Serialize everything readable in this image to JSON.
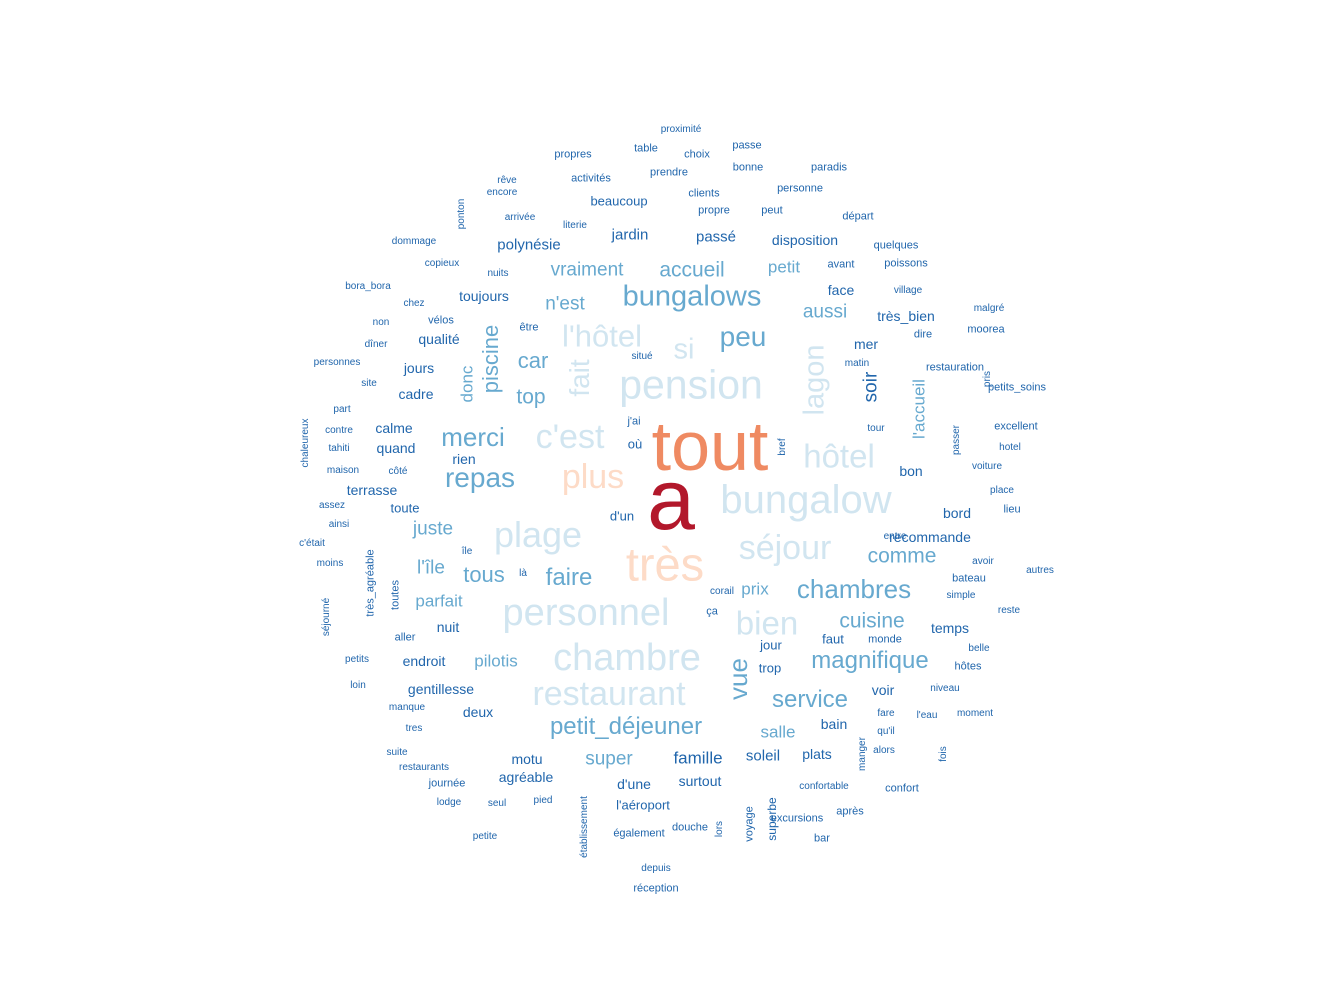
{
  "palette": {
    "dark_red": "#B2182B",
    "orange": "#EF8A62",
    "peach": "#FDDBC7",
    "pale_blue": "#D1E5F0",
    "light_blue": "#67A9CF",
    "dark_blue": "#2166AC"
  },
  "words": [
    {
      "text": "a",
      "level": 100,
      "color": "dark_red"
    },
    {
      "text": "tout",
      "level": 65,
      "color": "orange"
    },
    {
      "text": "plus",
      "level": 40,
      "color": "peach"
    },
    {
      "text": "très",
      "level": 55,
      "color": "peach"
    },
    {
      "text": "pension",
      "level": 48,
      "color": "pale_blue"
    },
    {
      "text": "bungalow",
      "level": 46,
      "color": "pale_blue"
    },
    {
      "text": "personnel",
      "level": 44,
      "color": "pale_blue"
    },
    {
      "text": "chambre",
      "level": 44,
      "color": "pale_blue"
    },
    {
      "text": "plage",
      "level": 42,
      "color": "pale_blue"
    },
    {
      "text": "restaurant",
      "level": 40,
      "color": "pale_blue"
    },
    {
      "text": "séjour",
      "level": 40,
      "color": "pale_blue"
    },
    {
      "text": "c'est",
      "level": 40,
      "color": "pale_blue"
    },
    {
      "text": "hôtel",
      "level": 38,
      "color": "pale_blue"
    },
    {
      "text": "bien",
      "level": 38,
      "color": "pale_blue"
    },
    {
      "text": "l'hôtel",
      "level": 36,
      "color": "pale_blue"
    },
    {
      "text": "lagon",
      "level": 34,
      "color": "pale_blue"
    },
    {
      "text": "si",
      "level": 34,
      "color": "pale_blue"
    },
    {
      "text": "fait",
      "level": 32,
      "color": "pale_blue"
    },
    {
      "text": "bungalows",
      "level": 34,
      "color": "light_blue"
    },
    {
      "text": "peu",
      "level": 32,
      "color": "light_blue"
    },
    {
      "text": "repas",
      "level": 32,
      "color": "light_blue"
    },
    {
      "text": "merci",
      "level": 30,
      "color": "light_blue"
    },
    {
      "text": "chambres",
      "level": 30,
      "color": "light_blue"
    },
    {
      "text": "vue",
      "level": 30,
      "color": "light_blue"
    },
    {
      "text": "petit_déjeuner",
      "level": 28,
      "color": "light_blue"
    },
    {
      "text": "magnifique",
      "level": 28,
      "color": "light_blue"
    },
    {
      "text": "faire",
      "level": 28,
      "color": "light_blue"
    },
    {
      "text": "service",
      "level": 28,
      "color": "light_blue"
    },
    {
      "text": "piscine",
      "level": 26,
      "color": "light_blue"
    },
    {
      "text": "tous",
      "level": 26,
      "color": "light_blue"
    },
    {
      "text": "car",
      "level": 26,
      "color": "light_blue"
    },
    {
      "text": "comme",
      "level": 24,
      "color": "light_blue"
    },
    {
      "text": "cuisine",
      "level": 24,
      "color": "light_blue"
    },
    {
      "text": "accueil",
      "level": 24,
      "color": "light_blue"
    },
    {
      "text": "vraiment",
      "level": 22,
      "color": "light_blue"
    },
    {
      "text": "n'est",
      "level": 22,
      "color": "light_blue"
    },
    {
      "text": "top",
      "level": 24,
      "color": "light_blue"
    },
    {
      "text": "aussi",
      "level": 22,
      "color": "light_blue"
    },
    {
      "text": "juste",
      "level": 22,
      "color": "light_blue"
    },
    {
      "text": "l'île",
      "level": 22,
      "color": "light_blue"
    },
    {
      "text": "parfait",
      "level": 20,
      "color": "light_blue"
    },
    {
      "text": "pilotis",
      "level": 20,
      "color": "light_blue"
    },
    {
      "text": "super",
      "level": 22,
      "color": "light_blue"
    },
    {
      "text": "salle",
      "level": 20,
      "color": "light_blue"
    },
    {
      "text": "petit",
      "level": 20,
      "color": "light_blue"
    },
    {
      "text": "prix",
      "level": 20,
      "color": "light_blue"
    },
    {
      "text": "donc",
      "level": 20,
      "color": "light_blue"
    },
    {
      "text": "l'accueil",
      "level": 20,
      "color": "light_blue"
    },
    {
      "text": "soir",
      "level": 22,
      "color": "dark_blue"
    },
    {
      "text": "famille",
      "level": 20,
      "color": "dark_blue"
    },
    {
      "text": "polynésie",
      "level": 18,
      "color": "dark_blue"
    },
    {
      "text": "jardin",
      "level": 18,
      "color": "dark_blue"
    },
    {
      "text": "passé",
      "level": 18,
      "color": "dark_blue"
    },
    {
      "text": "disposition",
      "level": 16,
      "color": "dark_blue"
    },
    {
      "text": "toujours",
      "level": 16,
      "color": "dark_blue"
    },
    {
      "text": "soleil",
      "level": 18,
      "color": "dark_blue"
    },
    {
      "text": "gentillesse",
      "level": 16,
      "color": "dark_blue"
    },
    {
      "text": "deux",
      "level": 16,
      "color": "dark_blue"
    },
    {
      "text": "motu",
      "level": 16,
      "color": "dark_blue"
    },
    {
      "text": "surtout",
      "level": 16,
      "color": "dark_blue"
    },
    {
      "text": "d'une",
      "level": 16,
      "color": "dark_blue"
    },
    {
      "text": "agréable",
      "level": 16,
      "color": "dark_blue"
    },
    {
      "text": "nuit",
      "level": 16,
      "color": "dark_blue"
    },
    {
      "text": "endroit",
      "level": 16,
      "color": "dark_blue"
    },
    {
      "text": "quand",
      "level": 16,
      "color": "dark_blue"
    },
    {
      "text": "rien",
      "level": 16,
      "color": "dark_blue"
    },
    {
      "text": "terrasse",
      "level": 16,
      "color": "dark_blue"
    },
    {
      "text": "cadre",
      "level": 16,
      "color": "dark_blue"
    },
    {
      "text": "jours",
      "level": 16,
      "color": "dark_blue"
    },
    {
      "text": "qualité",
      "level": 16,
      "color": "dark_blue"
    },
    {
      "text": "calme",
      "level": 16,
      "color": "dark_blue"
    },
    {
      "text": "bon",
      "level": 16,
      "color": "dark_blue"
    },
    {
      "text": "recommande",
      "level": 16,
      "color": "dark_blue"
    },
    {
      "text": "bord",
      "level": 16,
      "color": "dark_blue"
    },
    {
      "text": "temps",
      "level": 16,
      "color": "dark_blue"
    },
    {
      "text": "mer",
      "level": 16,
      "color": "dark_blue"
    },
    {
      "text": "face",
      "level": 16,
      "color": "dark_blue"
    },
    {
      "text": "très_bien",
      "level": 16,
      "color": "dark_blue"
    },
    {
      "text": "voir",
      "level": 16,
      "color": "dark_blue"
    },
    {
      "text": "plats",
      "level": 16,
      "color": "dark_blue"
    },
    {
      "text": "bain",
      "level": 16,
      "color": "dark_blue"
    },
    {
      "text": "faut",
      "level": 15,
      "color": "dark_blue"
    },
    {
      "text": "jour",
      "level": 15,
      "color": "dark_blue"
    },
    {
      "text": "trop",
      "level": 15,
      "color": "dark_blue"
    },
    {
      "text": "beaucoup",
      "level": 15,
      "color": "dark_blue"
    },
    {
      "text": "d'un",
      "level": 15,
      "color": "dark_blue"
    },
    {
      "text": "l'aéroport",
      "level": 15,
      "color": "dark_blue"
    },
    {
      "text": "toute",
      "level": 15,
      "color": "dark_blue"
    },
    {
      "text": "où",
      "level": 15,
      "color": "dark_blue"
    },
    {
      "text": "avant",
      "level": 13,
      "color": "dark_blue"
    },
    {
      "text": "clients",
      "level": 13,
      "color": "dark_blue"
    },
    {
      "text": "activités",
      "level": 13,
      "color": "dark_blue"
    },
    {
      "text": "propres",
      "level": 13,
      "color": "dark_blue"
    },
    {
      "text": "prendre",
      "level": 13,
      "color": "dark_blue"
    },
    {
      "text": "propre",
      "level": 13,
      "color": "dark_blue"
    },
    {
      "text": "peut",
      "level": 13,
      "color": "dark_blue"
    },
    {
      "text": "personne",
      "level": 13,
      "color": "dark_blue"
    },
    {
      "text": "bonne",
      "level": 13,
      "color": "dark_blue"
    },
    {
      "text": "paradis",
      "level": 13,
      "color": "dark_blue"
    },
    {
      "text": "départ",
      "level": 13,
      "color": "dark_blue"
    },
    {
      "text": "choix",
      "level": 13,
      "color": "dark_blue"
    },
    {
      "text": "table",
      "level": 13,
      "color": "dark_blue"
    },
    {
      "text": "passe",
      "level": 13,
      "color": "dark_blue"
    },
    {
      "text": "proximité",
      "level": 12,
      "color": "dark_blue"
    },
    {
      "text": "rêve",
      "level": 12,
      "color": "dark_blue"
    },
    {
      "text": "encore",
      "level": 12,
      "color": "dark_blue"
    },
    {
      "text": "ponton",
      "level": 12,
      "color": "dark_blue"
    },
    {
      "text": "arrivée",
      "level": 12,
      "color": "dark_blue"
    },
    {
      "text": "literie",
      "level": 12,
      "color": "dark_blue"
    },
    {
      "text": "dommage",
      "level": 12,
      "color": "dark_blue"
    },
    {
      "text": "copieux",
      "level": 12,
      "color": "dark_blue"
    },
    {
      "text": "nuits",
      "level": 12,
      "color": "dark_blue"
    },
    {
      "text": "bora_bora",
      "level": 12,
      "color": "dark_blue"
    },
    {
      "text": "chez",
      "level": 12,
      "color": "dark_blue"
    },
    {
      "text": "non",
      "level": 12,
      "color": "dark_blue"
    },
    {
      "text": "vélos",
      "level": 13,
      "color": "dark_blue"
    },
    {
      "text": "être",
      "level": 13,
      "color": "dark_blue"
    },
    {
      "text": "dîner",
      "level": 12,
      "color": "dark_blue"
    },
    {
      "text": "personnes",
      "level": 12,
      "color": "dark_blue"
    },
    {
      "text": "situé",
      "level": 12,
      "color": "dark_blue"
    },
    {
      "text": "site",
      "level": 12,
      "color": "dark_blue"
    },
    {
      "text": "part",
      "level": 12,
      "color": "dark_blue"
    },
    {
      "text": "chaleureux",
      "level": 12,
      "color": "dark_blue"
    },
    {
      "text": "contre",
      "level": 12,
      "color": "dark_blue"
    },
    {
      "text": "tahiti",
      "level": 12,
      "color": "dark_blue"
    },
    {
      "text": "maison",
      "level": 12,
      "color": "dark_blue"
    },
    {
      "text": "côté",
      "level": 12,
      "color": "dark_blue"
    },
    {
      "text": "assez",
      "level": 12,
      "color": "dark_blue"
    },
    {
      "text": "ainsi",
      "level": 12,
      "color": "dark_blue"
    },
    {
      "text": "c'était",
      "level": 12,
      "color": "dark_blue"
    },
    {
      "text": "moins",
      "level": 12,
      "color": "dark_blue"
    },
    {
      "text": "très_agréable",
      "level": 13,
      "color": "dark_blue"
    },
    {
      "text": "toutes",
      "level": 13,
      "color": "dark_blue"
    },
    {
      "text": "île",
      "level": 12,
      "color": "dark_blue"
    },
    {
      "text": "là",
      "level": 12,
      "color": "dark_blue"
    },
    {
      "text": "séjourné",
      "level": 12,
      "color": "dark_blue"
    },
    {
      "text": "aller",
      "level": 13,
      "color": "dark_blue"
    },
    {
      "text": "petits",
      "level": 12,
      "color": "dark_blue"
    },
    {
      "text": "loin",
      "level": 12,
      "color": "dark_blue"
    },
    {
      "text": "manque",
      "level": 12,
      "color": "dark_blue"
    },
    {
      "text": "tres",
      "level": 12,
      "color": "dark_blue"
    },
    {
      "text": "suite",
      "level": 12,
      "color": "dark_blue"
    },
    {
      "text": "restaurants",
      "level": 12,
      "color": "dark_blue"
    },
    {
      "text": "journée",
      "level": 13,
      "color": "dark_blue"
    },
    {
      "text": "lodge",
      "level": 12,
      "color": "dark_blue"
    },
    {
      "text": "seul",
      "level": 12,
      "color": "dark_blue"
    },
    {
      "text": "pied",
      "level": 12,
      "color": "dark_blue"
    },
    {
      "text": "petite",
      "level": 12,
      "color": "dark_blue"
    },
    {
      "text": "établissement",
      "level": 12,
      "color": "dark_blue"
    },
    {
      "text": "également",
      "level": 13,
      "color": "dark_blue"
    },
    {
      "text": "douche",
      "level": 13,
      "color": "dark_blue"
    },
    {
      "text": "lors",
      "level": 12,
      "color": "dark_blue"
    },
    {
      "text": "voyage",
      "level": 13,
      "color": "dark_blue"
    },
    {
      "text": "superbe",
      "level": 14,
      "color": "dark_blue"
    },
    {
      "text": "excursions",
      "level": 13,
      "color": "dark_blue"
    },
    {
      "text": "bar",
      "level": 13,
      "color": "dark_blue"
    },
    {
      "text": "depuis",
      "level": 12,
      "color": "dark_blue"
    },
    {
      "text": "réception",
      "level": 13,
      "color": "dark_blue"
    },
    {
      "text": "confortable",
      "level": 12,
      "color": "dark_blue"
    },
    {
      "text": "après",
      "level": 13,
      "color": "dark_blue"
    },
    {
      "text": "confort",
      "level": 13,
      "color": "dark_blue"
    },
    {
      "text": "manger",
      "level": 12,
      "color": "dark_blue"
    },
    {
      "text": "alors",
      "level": 12,
      "color": "dark_blue"
    },
    {
      "text": "qu'il",
      "level": 12,
      "color": "dark_blue"
    },
    {
      "text": "fare",
      "level": 12,
      "color": "dark_blue"
    },
    {
      "text": "l'eau",
      "level": 12,
      "color": "dark_blue"
    },
    {
      "text": "fois",
      "level": 12,
      "color": "dark_blue"
    },
    {
      "text": "moment",
      "level": 12,
      "color": "dark_blue"
    },
    {
      "text": "niveau",
      "level": 12,
      "color": "dark_blue"
    },
    {
      "text": "hôtes",
      "level": 13,
      "color": "dark_blue"
    },
    {
      "text": "belle",
      "level": 12,
      "color": "dark_blue"
    },
    {
      "text": "monde",
      "level": 13,
      "color": "dark_blue"
    },
    {
      "text": "reste",
      "level": 12,
      "color": "dark_blue"
    },
    {
      "text": "simple",
      "level": 12,
      "color": "dark_blue"
    },
    {
      "text": "bateau",
      "level": 13,
      "color": "dark_blue"
    },
    {
      "text": "avoir",
      "level": 12,
      "color": "dark_blue"
    },
    {
      "text": "autres",
      "level": 12,
      "color": "dark_blue"
    },
    {
      "text": "entre",
      "level": 12,
      "color": "dark_blue"
    },
    {
      "text": "lieu",
      "level": 13,
      "color": "dark_blue"
    },
    {
      "text": "place",
      "level": 12,
      "color": "dark_blue"
    },
    {
      "text": "voiture",
      "level": 12,
      "color": "dark_blue"
    },
    {
      "text": "hotel",
      "level": 12,
      "color": "dark_blue"
    },
    {
      "text": "excellent",
      "level": 13,
      "color": "dark_blue"
    },
    {
      "text": "petits_soins",
      "level": 13,
      "color": "dark_blue"
    },
    {
      "text": "pris",
      "level": 12,
      "color": "dark_blue"
    },
    {
      "text": "passer",
      "level": 12,
      "color": "dark_blue"
    },
    {
      "text": "restauration",
      "level": 13,
      "color": "dark_blue"
    },
    {
      "text": "tour",
      "level": 12,
      "color": "dark_blue"
    },
    {
      "text": "bref",
      "level": 12,
      "color": "dark_blue"
    },
    {
      "text": "matin",
      "level": 12,
      "color": "dark_blue"
    },
    {
      "text": "dire",
      "level": 13,
      "color": "dark_blue"
    },
    {
      "text": "moorea",
      "level": 13,
      "color": "dark_blue"
    },
    {
      "text": "malgré",
      "level": 12,
      "color": "dark_blue"
    },
    {
      "text": "village",
      "level": 12,
      "color": "dark_blue"
    },
    {
      "text": "poissons",
      "level": 13,
      "color": "dark_blue"
    },
    {
      "text": "quelques",
      "level": 13,
      "color": "dark_blue"
    },
    {
      "text": "corail",
      "level": 12,
      "color": "dark_blue"
    },
    {
      "text": "ça",
      "level": 13,
      "color": "dark_blue"
    },
    {
      "text": "j'ai",
      "level": 13,
      "color": "dark_blue"
    },
    {
      "text": "wifi",
      "level": 12,
      "color": "dark_blue"
    }
  ]
}
